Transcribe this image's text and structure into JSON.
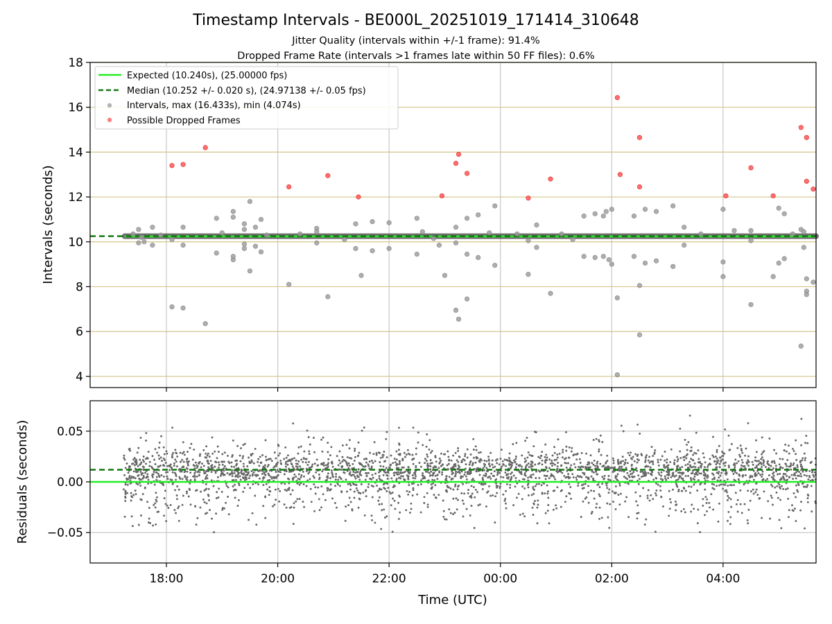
{
  "chart_data": [
    {
      "type": "scatter",
      "title": "Timestamp Intervals - BE000L_20251019_171414_310648",
      "subtitle_lines": [
        "Jitter Quality (intervals within +/-1 frame): 91.4%",
        "Dropped Frame Rate (intervals >1 frames late within 50 FF files): 0.6%"
      ],
      "ylabel": "Intervals (seconds)",
      "ylim": [
        3.5,
        18
      ],
      "yticks": [
        4,
        6,
        8,
        10,
        12,
        14,
        16,
        18
      ],
      "xlim_hours": [
        16.63,
        29.67
      ],
      "xticks": [
        {
          "h": 18,
          "label": "18:00"
        },
        {
          "h": 20,
          "label": "20:00"
        },
        {
          "h": 22,
          "label": "22:00"
        },
        {
          "h": 24,
          "label": "00:00"
        },
        {
          "h": 26,
          "label": "02:00"
        },
        {
          "h": 28,
          "label": "04:00"
        }
      ],
      "grid": true,
      "legend_position": "top-left",
      "legend": [
        {
          "label": "Expected (10.240s), (25.00000 fps)",
          "style": "line",
          "color": "#22ee22"
        },
        {
          "label": "Median (10.252 +/- 0.020 s), (24.97138 +/- 0.05 fps)",
          "style": "dashed",
          "color": "#117711"
        },
        {
          "label": "Intervals, max (16.433s), min (4.074s)",
          "style": "dot",
          "color": "#999999"
        },
        {
          "label": "Possible Dropped Frames",
          "style": "dot",
          "color": "#ff5555"
        }
      ],
      "expected_line": 10.24,
      "median_line": 10.252,
      "intervals_band": {
        "x_start": 17.25,
        "x_end": 29.67,
        "y": 10.25
      },
      "intervals": [
        [
          17.5,
          10.55
        ],
        [
          17.5,
          9.95
        ],
        [
          17.55,
          10.2
        ],
        [
          17.75,
          10.65
        ],
        [
          17.75,
          9.85
        ],
        [
          17.6,
          10.0
        ],
        [
          17.9,
          10.3
        ],
        [
          18.1,
          7.1
        ],
        [
          18.3,
          7.05
        ],
        [
          18.3,
          10.65
        ],
        [
          18.3,
          9.85
        ],
        [
          18.7,
          6.35
        ],
        [
          18.9,
          9.5
        ],
        [
          18.9,
          11.05
        ],
        [
          19.0,
          10.4
        ],
        [
          19.2,
          11.1
        ],
        [
          19.2,
          11.35
        ],
        [
          19.2,
          9.35
        ],
        [
          19.2,
          9.2
        ],
        [
          19.4,
          10.8
        ],
        [
          19.4,
          10.55
        ],
        [
          19.4,
          9.9
        ],
        [
          19.4,
          9.7
        ],
        [
          19.5,
          11.8
        ],
        [
          19.5,
          8.7
        ],
        [
          19.6,
          10.65
        ],
        [
          19.6,
          9.8
        ],
        [
          19.7,
          11.0
        ],
        [
          19.7,
          9.55
        ],
        [
          19.8,
          10.3
        ],
        [
          20.2,
          8.1
        ],
        [
          20.7,
          10.6
        ],
        [
          20.7,
          10.45
        ],
        [
          20.7,
          9.95
        ],
        [
          20.9,
          7.55
        ],
        [
          21.2,
          10.1
        ],
        [
          21.4,
          10.8
        ],
        [
          21.4,
          9.7
        ],
        [
          21.5,
          8.5
        ],
        [
          21.7,
          10.9
        ],
        [
          21.7,
          9.6
        ],
        [
          22.0,
          10.85
        ],
        [
          22.0,
          9.7
        ],
        [
          22.5,
          11.05
        ],
        [
          22.5,
          9.45
        ],
        [
          22.6,
          10.45
        ],
        [
          22.9,
          9.85
        ],
        [
          23.0,
          8.5
        ],
        [
          23.2,
          10.65
        ],
        [
          23.2,
          9.95
        ],
        [
          23.2,
          6.95
        ],
        [
          23.25,
          6.55
        ],
        [
          23.4,
          11.05
        ],
        [
          23.4,
          9.45
        ],
        [
          23.4,
          7.45
        ],
        [
          23.6,
          11.2
        ],
        [
          23.6,
          9.3
        ],
        [
          23.8,
          10.4
        ],
        [
          23.9,
          11.6
        ],
        [
          23.9,
          8.95
        ],
        [
          24.3,
          10.35
        ],
        [
          24.5,
          8.55
        ],
        [
          24.5,
          10.05
        ],
        [
          24.65,
          10.75
        ],
        [
          24.65,
          9.75
        ],
        [
          24.9,
          7.7
        ],
        [
          25.1,
          10.35
        ],
        [
          25.5,
          11.15
        ],
        [
          25.5,
          9.35
        ],
        [
          25.7,
          11.25
        ],
        [
          25.7,
          9.3
        ],
        [
          25.85,
          11.15
        ],
        [
          25.85,
          9.35
        ],
        [
          25.9,
          11.35
        ],
        [
          25.95,
          9.2
        ],
        [
          26.0,
          11.45
        ],
        [
          26.0,
          9.0
        ],
        [
          26.1,
          7.5
        ],
        [
          26.1,
          4.07
        ],
        [
          26.4,
          11.15
        ],
        [
          26.4,
          9.35
        ],
        [
          26.5,
          8.05
        ],
        [
          26.5,
          5.85
        ],
        [
          26.6,
          11.45
        ],
        [
          26.6,
          9.05
        ],
        [
          26.8,
          11.35
        ],
        [
          26.8,
          9.15
        ],
        [
          27.1,
          11.6
        ],
        [
          27.1,
          8.9
        ],
        [
          27.3,
          10.65
        ],
        [
          27.3,
          9.85
        ],
        [
          27.6,
          10.35
        ],
        [
          28.0,
          11.45
        ],
        [
          28.0,
          9.1
        ],
        [
          28.0,
          8.45
        ],
        [
          28.2,
          10.5
        ],
        [
          28.5,
          10.5
        ],
        [
          28.5,
          10.05
        ],
        [
          28.5,
          7.2
        ],
        [
          28.9,
          8.45
        ],
        [
          29.0,
          11.5
        ],
        [
          29.1,
          11.25
        ],
        [
          29.1,
          9.25
        ],
        [
          29.0,
          9.05
        ],
        [
          29.4,
          10.55
        ],
        [
          29.45,
          10.45
        ],
        [
          29.45,
          9.75
        ],
        [
          29.5,
          8.35
        ],
        [
          29.5,
          7.8
        ],
        [
          29.5,
          7.65
        ],
        [
          29.4,
          5.35
        ],
        [
          29.62,
          8.2
        ],
        [
          29.25,
          10.35
        ],
        [
          17.4,
          10.35
        ],
        [
          18.1,
          10.1
        ],
        [
          20.4,
          10.35
        ],
        [
          22.8,
          10.15
        ],
        [
          25.3,
          10.1
        ]
      ],
      "dropped_frames": [
        [
          18.1,
          13.4
        ],
        [
          18.3,
          13.45
        ],
        [
          18.7,
          14.2
        ],
        [
          20.2,
          12.45
        ],
        [
          20.9,
          12.95
        ],
        [
          21.45,
          12.0
        ],
        [
          22.95,
          12.05
        ],
        [
          23.2,
          13.5
        ],
        [
          23.25,
          13.9
        ],
        [
          23.4,
          13.05
        ],
        [
          24.5,
          11.95
        ],
        [
          24.9,
          12.8
        ],
        [
          26.1,
          16.43
        ],
        [
          26.15,
          13.0
        ],
        [
          26.5,
          14.65
        ],
        [
          26.5,
          12.45
        ],
        [
          28.05,
          12.05
        ],
        [
          28.5,
          13.3
        ],
        [
          28.9,
          12.05
        ],
        [
          29.4,
          15.1
        ],
        [
          29.5,
          14.65
        ],
        [
          29.5,
          12.7
        ],
        [
          29.62,
          12.35
        ]
      ]
    },
    {
      "type": "scatter",
      "ylabel": "Residuals (seconds)",
      "xlabel": "Time (UTC)",
      "ylim": [
        -0.08,
        0.08
      ],
      "yticks": [
        {
          "v": 0.05,
          "label": "0.05"
        },
        {
          "v": 0.0,
          "label": "0.00"
        },
        {
          "v": -0.05,
          "label": "−0.05"
        }
      ],
      "xlim_hours": [
        16.63,
        29.67
      ],
      "grid": true,
      "expected_line": 0.0,
      "median_line": 0.012,
      "residual_points": {
        "count": 2900,
        "x_start": 17.23,
        "x_end": 29.67,
        "center": 0.012,
        "color": "#666666"
      }
    }
  ]
}
